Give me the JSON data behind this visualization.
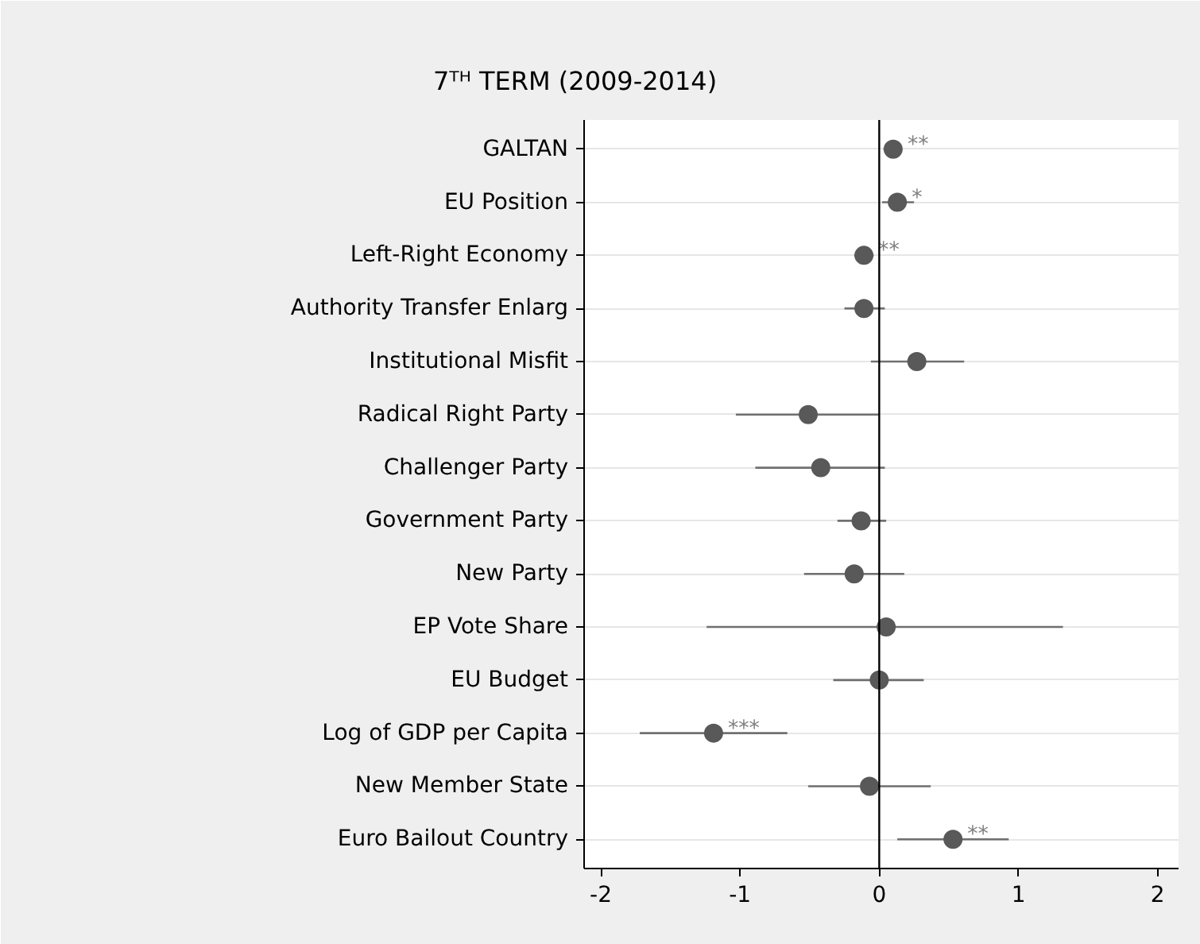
{
  "chart_data": {
    "type": "scatter",
    "title": "7ᵀᴴ TERM (2009-2014)",
    "orientation": "horizontal",
    "categories": [
      "GALTAN",
      "EU Position",
      "Left-Right Economy",
      "Authority Transfer Enlarg",
      "Institutional Misfit",
      "Radical Right Party",
      "Challenger Party",
      "Government Party",
      "New Party",
      "EP Vote Share",
      "EU Budget",
      "Log of GDP per Capita",
      "New Member State",
      "Euro Bailout Country"
    ],
    "values": [
      0.1,
      0.13,
      -0.11,
      -0.11,
      0.27,
      -0.51,
      -0.42,
      -0.13,
      -0.18,
      0.05,
      0.0,
      -1.19,
      -0.07,
      0.53
    ],
    "errors": [
      [
        0.03,
        0.16
      ],
      [
        0.02,
        0.25
      ],
      [
        -0.18,
        -0.04
      ],
      [
        -0.25,
        0.04
      ],
      [
        -0.06,
        0.61
      ],
      [
        -1.03,
        0.0
      ],
      [
        -0.89,
        0.04
      ],
      [
        -0.3,
        0.05
      ],
      [
        -0.54,
        0.18
      ],
      [
        -1.24,
        1.32
      ],
      [
        -0.33,
        0.32
      ],
      [
        -1.72,
        -0.66
      ],
      [
        -0.51,
        0.37
      ],
      [
        0.13,
        0.93
      ]
    ],
    "color": "#595959",
    "marker": "circle",
    "grid": "y",
    "xlim": [
      -2.12,
      2.15
    ],
    "xticks": [
      -2,
      -1,
      0,
      1,
      2
    ],
    "ref_lines": [
      {
        "axis": "x",
        "value": 0,
        "color": "#000000"
      }
    ],
    "annotations": [
      {
        "text": "**",
        "x": 0.1,
        "y": "GALTAN"
      },
      {
        "text": "*",
        "x": 0.13,
        "y": "EU Position"
      },
      {
        "text": "**",
        "x": -0.11,
        "y": "Left-Right Economy"
      },
      {
        "text": "***",
        "x": -1.19,
        "y": "Log of GDP per Capita"
      },
      {
        "text": "**",
        "x": 0.53,
        "y": "Euro Bailout Country"
      }
    ]
  }
}
